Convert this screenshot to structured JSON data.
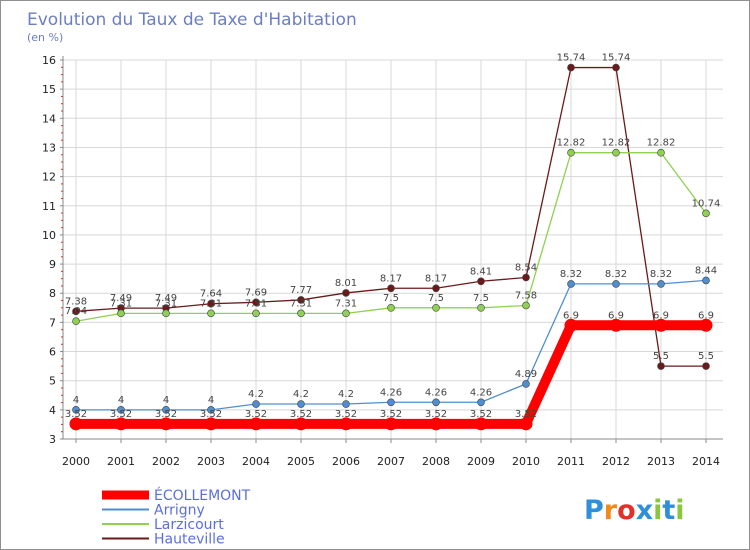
{
  "chart_data": {
    "type": "line",
    "title": "Evolution du Taux de Taxe d'Habitation",
    "subtitle": "(en %)",
    "xlabel": "",
    "ylabel": "",
    "x": [
      2000,
      2001,
      2002,
      2003,
      2004,
      2005,
      2006,
      2007,
      2008,
      2009,
      2010,
      2011,
      2012,
      2013,
      2014
    ],
    "ylim": [
      3,
      16
    ],
    "yticks": [
      3,
      4,
      5,
      6,
      7,
      8,
      9,
      10,
      11,
      12,
      13,
      14,
      15,
      16
    ],
    "grid": true,
    "legend_position": "bottom-left",
    "series": [
      {
        "name": "Hauteville",
        "color": "#6b1a1a",
        "values": [
          7.38,
          7.49,
          7.49,
          7.64,
          7.69,
          7.77,
          8.01,
          8.17,
          8.17,
          8.41,
          8.54,
          15.74,
          15.74,
          5.5,
          5.5
        ],
        "labels": [
          "7.38",
          "7.49",
          "7.49",
          "7.64",
          "7.69",
          "7.77",
          "8.01",
          "8.17",
          "8.17",
          "8.41",
          "8.54",
          "15.74",
          "15.74",
          "5.5",
          "5.5"
        ]
      },
      {
        "name": "Larzicourt",
        "color": "#8fd14f",
        "values": [
          7.04,
          7.31,
          7.31,
          7.31,
          7.31,
          7.31,
          7.31,
          7.5,
          7.5,
          7.5,
          7.58,
          12.82,
          12.82,
          12.82,
          10.74
        ],
        "labels": [
          "7.04",
          "7.31",
          "7.31",
          "7.31",
          "7.31",
          "7.31",
          "7.31",
          "7.5",
          "7.5",
          "7.5",
          "7.58",
          "12.82",
          "12.82",
          "12.82",
          "10.74"
        ]
      },
      {
        "name": "Arrigny",
        "color": "#4f8fd0",
        "values": [
          4,
          4,
          4,
          4,
          4.2,
          4.2,
          4.2,
          4.26,
          4.26,
          4.26,
          4.89,
          8.32,
          8.32,
          8.32,
          8.44
        ],
        "labels": [
          "4",
          "4",
          "4",
          "4",
          "4.2",
          "4.2",
          "4.2",
          "4.26",
          "4.26",
          "4.26",
          "4.89",
          "8.32",
          "8.32",
          "8.32",
          "8.44"
        ]
      },
      {
        "name": "ÉCOLLEMONT",
        "color": "#ff0000",
        "values": [
          3.52,
          3.52,
          3.52,
          3.52,
          3.52,
          3.52,
          3.52,
          3.52,
          3.52,
          3.52,
          3.52,
          6.9,
          6.9,
          6.9,
          6.9
        ],
        "labels": [
          "3.52",
          "3.52",
          "3.52",
          "3.52",
          "3.52",
          "3.52",
          "3.52",
          "3.52",
          "3.52",
          "3.52",
          "3.52",
          "6.9",
          "6.9",
          "6.9",
          "6.9"
        ]
      }
    ],
    "legend_order": [
      "ÉCOLLEMONT",
      "Arrigny",
      "Larzicourt",
      "Hauteville"
    ]
  },
  "logo": {
    "text": "Proxiti",
    "letters": [
      "P",
      "r",
      "o",
      "x",
      "i",
      "t",
      "i"
    ],
    "colors": [
      "#2f8fd9",
      "#f08a1c",
      "#e0322b",
      "#2f8fd9",
      "#8cc63f",
      "#2f8fd9",
      "#8cc63f"
    ]
  }
}
